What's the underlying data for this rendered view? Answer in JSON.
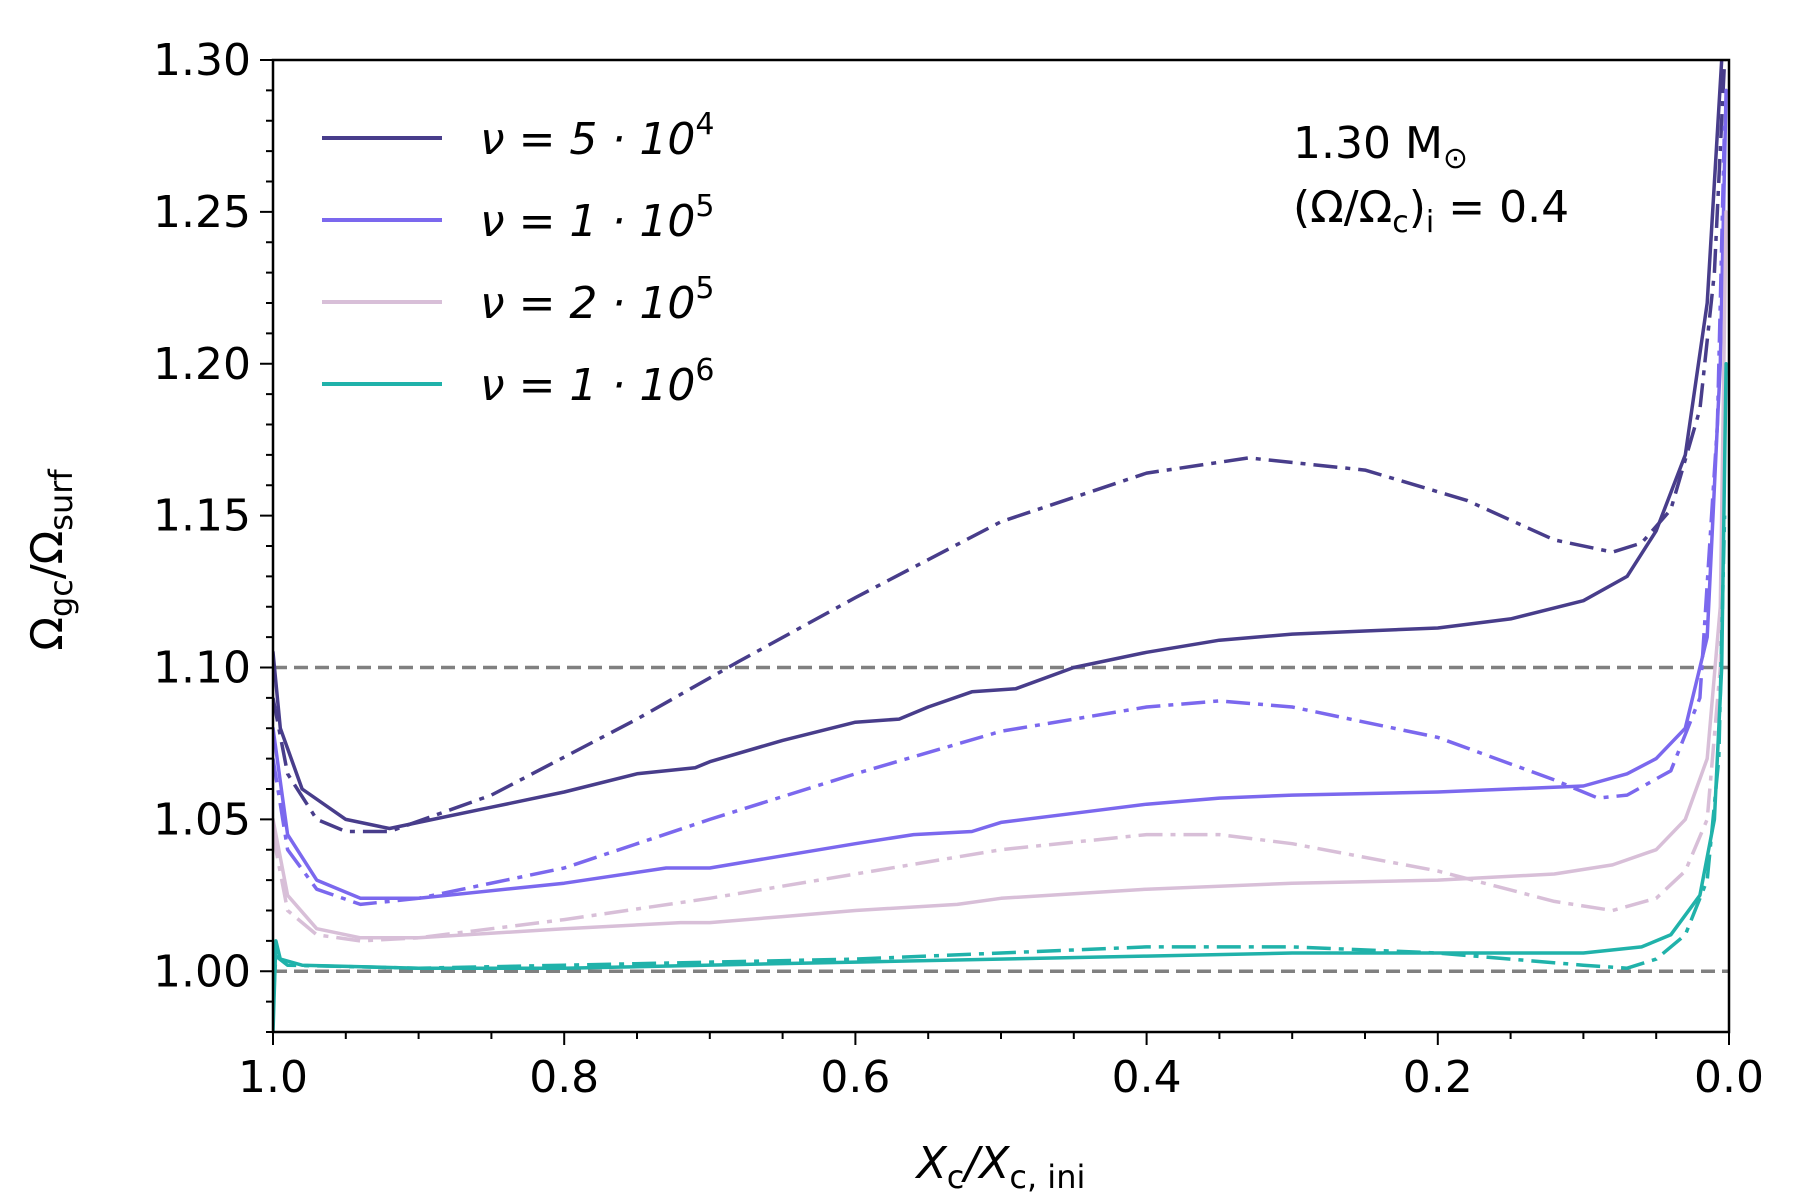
{
  "chart_data": {
    "type": "line",
    "title": "",
    "xlabel": "X_c / X_c,ini",
    "ylabel": "Ω_gc / Ω_surf",
    "xlim": [
      1.0,
      0.0
    ],
    "ylim": [
      0.98,
      1.3
    ],
    "x_ticks": [
      "1.0",
      "0.8",
      "0.6",
      "0.4",
      "0.2",
      "0.0"
    ],
    "y_ticks": [
      "1.00",
      "1.05",
      "1.10",
      "1.15",
      "1.20",
      "1.25",
      "1.30"
    ],
    "reference_lines": [
      1.0,
      1.1
    ],
    "annotation": {
      "mass": "1.30 M",
      "mass_symbol": "⊙",
      "rotation": "(Ω/Ω_c)_i = 0.4"
    },
    "legend_position": "top-left",
    "series": [
      {
        "name": "ν = 5·10^4",
        "label_prefix": "ν = 5 · 10",
        "label_exp": "4",
        "color": "#483d8b",
        "solid": [
          [
            1.0,
            1.105
          ],
          [
            0.995,
            1.08
          ],
          [
            0.98,
            1.06
          ],
          [
            0.95,
            1.05
          ],
          [
            0.92,
            1.047
          ],
          [
            0.9,
            1.049
          ],
          [
            0.85,
            1.054
          ],
          [
            0.8,
            1.059
          ],
          [
            0.75,
            1.065
          ],
          [
            0.71,
            1.067
          ],
          [
            0.7,
            1.069
          ],
          [
            0.65,
            1.076
          ],
          [
            0.6,
            1.082
          ],
          [
            0.57,
            1.083
          ],
          [
            0.55,
            1.087
          ],
          [
            0.52,
            1.092
          ],
          [
            0.49,
            1.093
          ],
          [
            0.45,
            1.1
          ],
          [
            0.4,
            1.105
          ],
          [
            0.35,
            1.109
          ],
          [
            0.3,
            1.111
          ],
          [
            0.25,
            1.112
          ],
          [
            0.2,
            1.113
          ],
          [
            0.15,
            1.116
          ],
          [
            0.1,
            1.122
          ],
          [
            0.07,
            1.13
          ],
          [
            0.05,
            1.145
          ],
          [
            0.03,
            1.17
          ],
          [
            0.015,
            1.22
          ],
          [
            0.005,
            1.3
          ]
        ],
        "dashdot": [
          [
            1.0,
            1.09
          ],
          [
            0.99,
            1.065
          ],
          [
            0.97,
            1.05
          ],
          [
            0.95,
            1.046
          ],
          [
            0.92,
            1.046
          ],
          [
            0.85,
            1.058
          ],
          [
            0.75,
            1.083
          ],
          [
            0.68,
            1.102
          ],
          [
            0.6,
            1.123
          ],
          [
            0.5,
            1.148
          ],
          [
            0.4,
            1.164
          ],
          [
            0.33,
            1.169
          ],
          [
            0.25,
            1.165
          ],
          [
            0.18,
            1.155
          ],
          [
            0.12,
            1.142
          ],
          [
            0.08,
            1.138
          ],
          [
            0.06,
            1.141
          ],
          [
            0.04,
            1.152
          ],
          [
            0.02,
            1.185
          ],
          [
            0.01,
            1.23
          ],
          [
            0.003,
            1.3
          ]
        ]
      },
      {
        "name": "ν = 1·10^5",
        "label_prefix": "ν = 1 · 10",
        "label_exp": "5",
        "color": "#7b68ee",
        "solid": [
          [
            1.0,
            1.08
          ],
          [
            0.99,
            1.045
          ],
          [
            0.97,
            1.03
          ],
          [
            0.94,
            1.024
          ],
          [
            0.9,
            1.024
          ],
          [
            0.8,
            1.029
          ],
          [
            0.73,
            1.034
          ],
          [
            0.7,
            1.034
          ],
          [
            0.65,
            1.038
          ],
          [
            0.6,
            1.042
          ],
          [
            0.56,
            1.045
          ],
          [
            0.52,
            1.046
          ],
          [
            0.5,
            1.049
          ],
          [
            0.45,
            1.052
          ],
          [
            0.4,
            1.055
          ],
          [
            0.35,
            1.057
          ],
          [
            0.3,
            1.058
          ],
          [
            0.2,
            1.059
          ],
          [
            0.1,
            1.061
          ],
          [
            0.07,
            1.065
          ],
          [
            0.05,
            1.07
          ],
          [
            0.03,
            1.08
          ],
          [
            0.015,
            1.11
          ],
          [
            0.006,
            1.2
          ],
          [
            0.002,
            1.29
          ]
        ],
        "dashdot": [
          [
            1.0,
            1.07
          ],
          [
            0.99,
            1.04
          ],
          [
            0.97,
            1.027
          ],
          [
            0.94,
            1.022
          ],
          [
            0.9,
            1.024
          ],
          [
            0.8,
            1.034
          ],
          [
            0.7,
            1.05
          ],
          [
            0.6,
            1.065
          ],
          [
            0.5,
            1.079
          ],
          [
            0.4,
            1.087
          ],
          [
            0.35,
            1.089
          ],
          [
            0.3,
            1.087
          ],
          [
            0.2,
            1.077
          ],
          [
            0.12,
            1.063
          ],
          [
            0.09,
            1.057
          ],
          [
            0.07,
            1.058
          ],
          [
            0.04,
            1.066
          ],
          [
            0.02,
            1.09
          ],
          [
            0.008,
            1.18
          ],
          [
            0.003,
            1.28
          ]
        ]
      },
      {
        "name": "ν = 2·10^5",
        "label_prefix": "ν = 2 · 10",
        "label_exp": "5",
        "color": "#d8bfd8",
        "solid": [
          [
            1.0,
            1.05
          ],
          [
            0.99,
            1.025
          ],
          [
            0.97,
            1.014
          ],
          [
            0.94,
            1.011
          ],
          [
            0.9,
            1.011
          ],
          [
            0.8,
            1.014
          ],
          [
            0.72,
            1.016
          ],
          [
            0.7,
            1.016
          ],
          [
            0.65,
            1.018
          ],
          [
            0.6,
            1.02
          ],
          [
            0.53,
            1.022
          ],
          [
            0.5,
            1.024
          ],
          [
            0.4,
            1.027
          ],
          [
            0.3,
            1.029
          ],
          [
            0.2,
            1.03
          ],
          [
            0.12,
            1.032
          ],
          [
            0.08,
            1.035
          ],
          [
            0.05,
            1.04
          ],
          [
            0.03,
            1.05
          ],
          [
            0.015,
            1.07
          ],
          [
            0.006,
            1.12
          ],
          [
            0.002,
            1.25
          ]
        ],
        "dashdot": [
          [
            1.0,
            1.045
          ],
          [
            0.99,
            1.02
          ],
          [
            0.97,
            1.012
          ],
          [
            0.94,
            1.01
          ],
          [
            0.9,
            1.011
          ],
          [
            0.8,
            1.017
          ],
          [
            0.7,
            1.024
          ],
          [
            0.6,
            1.032
          ],
          [
            0.5,
            1.04
          ],
          [
            0.4,
            1.045
          ],
          [
            0.35,
            1.045
          ],
          [
            0.3,
            1.042
          ],
          [
            0.2,
            1.033
          ],
          [
            0.12,
            1.023
          ],
          [
            0.08,
            1.02
          ],
          [
            0.05,
            1.024
          ],
          [
            0.03,
            1.033
          ],
          [
            0.015,
            1.05
          ],
          [
            0.006,
            1.1
          ],
          [
            0.002,
            1.2
          ]
        ]
      },
      {
        "name": "ν = 1·10^6",
        "label_prefix": "ν = 1 · 10",
        "label_exp": "6",
        "color": "#20b2aa",
        "solid": [
          [
            1.0,
            0.98
          ],
          [
            0.998,
            1.01
          ],
          [
            0.995,
            1.004
          ],
          [
            0.98,
            1.002
          ],
          [
            0.9,
            1.001
          ],
          [
            0.8,
            1.001
          ],
          [
            0.6,
            1.003
          ],
          [
            0.4,
            1.005
          ],
          [
            0.3,
            1.006
          ],
          [
            0.2,
            1.006
          ],
          [
            0.1,
            1.006
          ],
          [
            0.06,
            1.008
          ],
          [
            0.04,
            1.012
          ],
          [
            0.02,
            1.025
          ],
          [
            0.01,
            1.05
          ],
          [
            0.005,
            1.1
          ],
          [
            0.002,
            1.2
          ]
        ],
        "dashdot": [
          [
            1.0,
            0.99
          ],
          [
            0.998,
            1.005
          ],
          [
            0.99,
            1.002
          ],
          [
            0.9,
            1.001
          ],
          [
            0.8,
            1.002
          ],
          [
            0.6,
            1.004
          ],
          [
            0.5,
            1.006
          ],
          [
            0.4,
            1.008
          ],
          [
            0.35,
            1.008
          ],
          [
            0.3,
            1.008
          ],
          [
            0.2,
            1.006
          ],
          [
            0.15,
            1.004
          ],
          [
            0.1,
            1.002
          ],
          [
            0.07,
            1.001
          ],
          [
            0.05,
            1.004
          ],
          [
            0.03,
            1.012
          ],
          [
            0.015,
            1.03
          ],
          [
            0.007,
            1.07
          ],
          [
            0.003,
            1.15
          ]
        ]
      }
    ]
  }
}
